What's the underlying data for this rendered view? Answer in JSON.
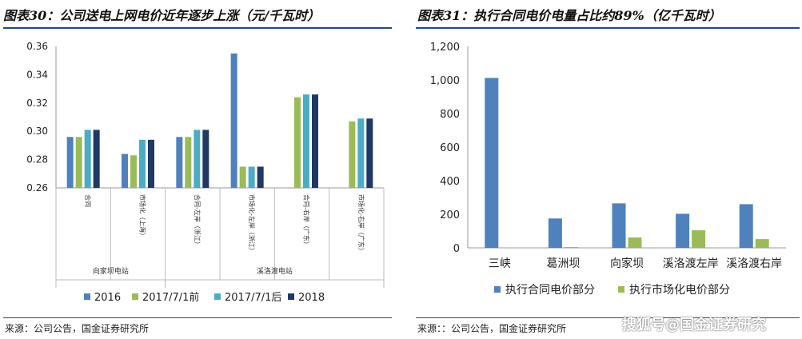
{
  "left": {
    "title": "图表30：公司送电上网电价近年逐步上涨（元/千瓦时）",
    "source": "来源：公司公告，国金证券研究所"
  },
  "right": {
    "title": "图表31：执行合同电价电量占比约89%（亿千瓦时）",
    "source": "来源：：公司公告，国金证券研究所"
  },
  "watermark": "搜狐号@国金证券研究",
  "chart_data": [
    {
      "type": "bar",
      "ylim": [
        0.26,
        0.36
      ],
      "yticks": [
        "0.26",
        "0.28",
        "0.30",
        "0.32",
        "0.34",
        "0.36"
      ],
      "categories": [
        "合同",
        "市场化（上海）",
        "合同-左岸（浙江）",
        "市场化-左岸（浙江）",
        "合同-右岸（广东）",
        "市场化-右岸（广东）"
      ],
      "groups": [
        {
          "label": "向家坝电站",
          "span": [
            0,
            1
          ]
        },
        {
          "label": "溪洛渡电站",
          "span": [
            2,
            5
          ]
        }
      ],
      "series": [
        {
          "name": "2016",
          "color": "#4f81bd",
          "values": [
            0.296,
            0.284,
            0.296,
            0.355,
            null,
            null
          ]
        },
        {
          "name": "2017/7/1前",
          "color": "#9bbb59",
          "values": [
            0.296,
            0.283,
            0.296,
            0.275,
            0.324,
            0.307
          ]
        },
        {
          "name": "2017/7/1后",
          "color": "#4bacc6",
          "values": [
            0.301,
            0.294,
            0.301,
            0.275,
            0.326,
            0.309
          ]
        },
        {
          "name": "2018",
          "color": "#1f3864",
          "values": [
            0.301,
            0.294,
            0.301,
            0.275,
            0.326,
            0.309
          ]
        }
      ],
      "legend_position": "bottom"
    },
    {
      "type": "bar",
      "ylim": [
        0,
        1200
      ],
      "yticks": [
        "0",
        "200",
        "400",
        "600",
        "800",
        "1,000",
        "1,200"
      ],
      "categories": [
        "三峡",
        "葛洲坝",
        "向家坝",
        "溪洛渡左岸",
        "溪洛渡右岸"
      ],
      "series": [
        {
          "name": "执行合同电价部分",
          "color": "#4f81bd",
          "values": [
            1012,
            175,
            265,
            203,
            260
          ]
        },
        {
          "name": "执行市场化电价部分",
          "color": "#9bbb59",
          "values": [
            0,
            5,
            62,
            105,
            52
          ]
        }
      ],
      "legend_position": "bottom"
    }
  ]
}
